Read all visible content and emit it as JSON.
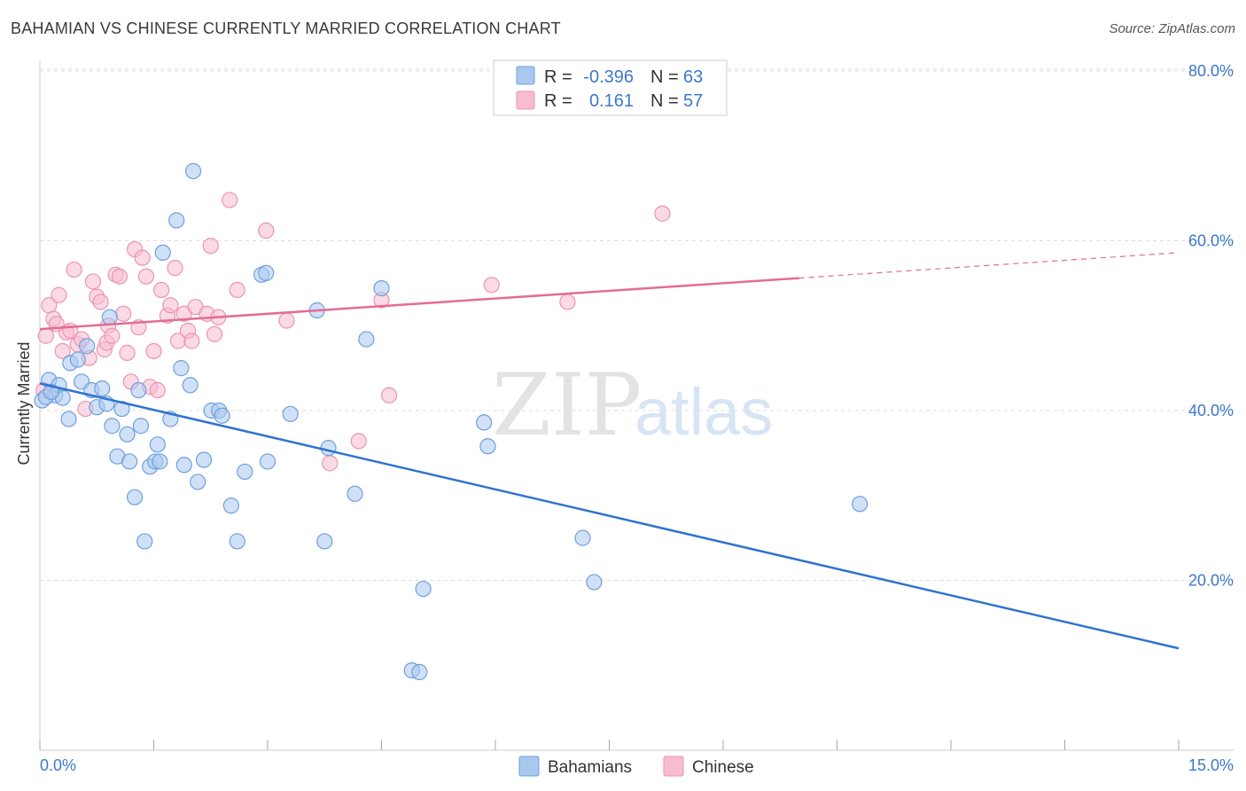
{
  "header": {
    "title": "BAHAMIAN VS CHINESE CURRENTLY MARRIED CORRELATION CHART",
    "source": "Source: ZipAtlas.com"
  },
  "watermark": {
    "zip": "ZIP",
    "atlas": "atlas"
  },
  "legend": {
    "rows": [
      {
        "r_label": "R =",
        "r_value": "-0.396",
        "n_label": "N =",
        "n_value": "63"
      },
      {
        "r_label": "R =",
        "r_value": "0.161",
        "n_label": "N =",
        "n_value": "57"
      }
    ]
  },
  "bottom_legend": [
    "Bahamians",
    "Chinese"
  ],
  "colors": {
    "blue_fill": "#a9c8f0",
    "blue_stroke": "#6f9fdc",
    "blue_line": "#2f73d0",
    "pink_fill": "#f7bcd0",
    "pink_stroke": "#ec93b1",
    "pink_line": "#e46b94",
    "grid": "#dddddd",
    "tick_text": "#3d78c9"
  },
  "chart_data": {
    "type": "scatter",
    "title": "BAHAMIAN VS CHINESE CURRENTLY MARRIED CORRELATION CHART",
    "xlabel": "",
    "ylabel": "Currently Married",
    "xlim": [
      0,
      15
    ],
    "ylim": [
      0,
      80
    ],
    "x_tick_labels": [
      "0.0%",
      "15.0%"
    ],
    "y_ticks": [
      20,
      40,
      60,
      80
    ],
    "y_tick_labels": [
      "20.0%",
      "40.0%",
      "60.0%",
      "80.0%"
    ],
    "grid": true,
    "legend_position": "top-center",
    "series": [
      {
        "name": "Bahamians",
        "r": -0.396,
        "n": 63,
        "trend": {
          "x": [
            0,
            15
          ],
          "y": [
            43.2,
            12.0
          ],
          "dashed_from": null
        },
        "points": [
          [
            0.03,
            41.2
          ],
          [
            0.12,
            43.6
          ],
          [
            0.2,
            41.8
          ],
          [
            0.25,
            43.0
          ],
          [
            0.3,
            41.5
          ],
          [
            0.38,
            39.0
          ],
          [
            0.4,
            45.6
          ],
          [
            0.5,
            46.0
          ],
          [
            0.55,
            43.4
          ],
          [
            0.62,
            47.6
          ],
          [
            0.68,
            42.4
          ],
          [
            0.75,
            40.4
          ],
          [
            0.82,
            42.6
          ],
          [
            0.88,
            40.8
          ],
          [
            0.92,
            51.0
          ],
          [
            0.95,
            38.2
          ],
          [
            1.02,
            34.6
          ],
          [
            1.08,
            40.2
          ],
          [
            1.15,
            37.2
          ],
          [
            1.18,
            34.0
          ],
          [
            1.25,
            29.8
          ],
          [
            1.3,
            42.4
          ],
          [
            1.33,
            38.2
          ],
          [
            1.38,
            24.6
          ],
          [
            1.45,
            33.4
          ],
          [
            1.52,
            34.0
          ],
          [
            1.55,
            36.0
          ],
          [
            1.58,
            34.0
          ],
          [
            1.62,
            58.6
          ],
          [
            1.72,
            39.0
          ],
          [
            1.8,
            62.4
          ],
          [
            1.86,
            45.0
          ],
          [
            1.9,
            33.6
          ],
          [
            1.98,
            43.0
          ],
          [
            2.02,
            68.2
          ],
          [
            2.08,
            31.6
          ],
          [
            2.16,
            34.2
          ],
          [
            2.26,
            40.0
          ],
          [
            2.36,
            40.0
          ],
          [
            2.4,
            39.4
          ],
          [
            2.52,
            28.8
          ],
          [
            2.6,
            24.6
          ],
          [
            2.7,
            32.8
          ],
          [
            2.92,
            56.0
          ],
          [
            2.98,
            56.2
          ],
          [
            3.0,
            34.0
          ],
          [
            3.3,
            39.6
          ],
          [
            3.65,
            51.8
          ],
          [
            3.75,
            24.6
          ],
          [
            3.8,
            35.6
          ],
          [
            4.15,
            30.2
          ],
          [
            4.3,
            48.4
          ],
          [
            4.5,
            54.4
          ],
          [
            4.9,
            9.4
          ],
          [
            5.0,
            9.2
          ],
          [
            5.05,
            19.0
          ],
          [
            5.85,
            38.6
          ],
          [
            5.9,
            35.8
          ],
          [
            7.15,
            25.0
          ],
          [
            7.3,
            19.8
          ],
          [
            10.8,
            29.0
          ],
          [
            0.08,
            41.6
          ],
          [
            0.15,
            42.2
          ]
        ]
      },
      {
        "name": "Chinese",
        "r": 0.161,
        "n": 57,
        "trend": {
          "x": [
            0,
            15
          ],
          "y": [
            49.6,
            58.6
          ],
          "dashed_from": 10.0
        },
        "points": [
          [
            0.05,
            42.4
          ],
          [
            0.08,
            48.8
          ],
          [
            0.12,
            52.4
          ],
          [
            0.18,
            50.8
          ],
          [
            0.22,
            50.2
          ],
          [
            0.25,
            53.6
          ],
          [
            0.3,
            47.0
          ],
          [
            0.35,
            49.2
          ],
          [
            0.4,
            49.4
          ],
          [
            0.45,
            56.6
          ],
          [
            0.5,
            47.8
          ],
          [
            0.55,
            48.4
          ],
          [
            0.6,
            40.2
          ],
          [
            0.65,
            46.2
          ],
          [
            0.7,
            55.2
          ],
          [
            0.75,
            53.4
          ],
          [
            0.8,
            52.8
          ],
          [
            0.85,
            47.2
          ],
          [
            0.88,
            48.0
          ],
          [
            0.9,
            50.0
          ],
          [
            0.95,
            48.8
          ],
          [
            1.0,
            56.0
          ],
          [
            1.05,
            55.8
          ],
          [
            1.1,
            51.4
          ],
          [
            1.15,
            46.8
          ],
          [
            1.2,
            43.4
          ],
          [
            1.25,
            59.0
          ],
          [
            1.3,
            49.8
          ],
          [
            1.35,
            58.0
          ],
          [
            1.4,
            55.8
          ],
          [
            1.45,
            42.8
          ],
          [
            1.5,
            47.0
          ],
          [
            1.55,
            42.4
          ],
          [
            1.6,
            54.2
          ],
          [
            1.68,
            51.2
          ],
          [
            1.72,
            52.4
          ],
          [
            1.78,
            56.8
          ],
          [
            1.82,
            48.2
          ],
          [
            1.9,
            51.4
          ],
          [
            1.95,
            49.4
          ],
          [
            2.0,
            48.2
          ],
          [
            2.05,
            52.2
          ],
          [
            2.2,
            51.4
          ],
          [
            2.25,
            59.4
          ],
          [
            2.3,
            49.0
          ],
          [
            2.35,
            51.0
          ],
          [
            2.5,
            64.8
          ],
          [
            2.6,
            54.2
          ],
          [
            2.98,
            61.2
          ],
          [
            3.25,
            50.6
          ],
          [
            3.82,
            33.8
          ],
          [
            4.2,
            36.4
          ],
          [
            4.5,
            53.0
          ],
          [
            4.6,
            41.8
          ],
          [
            5.95,
            54.8
          ],
          [
            6.95,
            52.8
          ],
          [
            8.2,
            63.2
          ]
        ]
      }
    ]
  }
}
